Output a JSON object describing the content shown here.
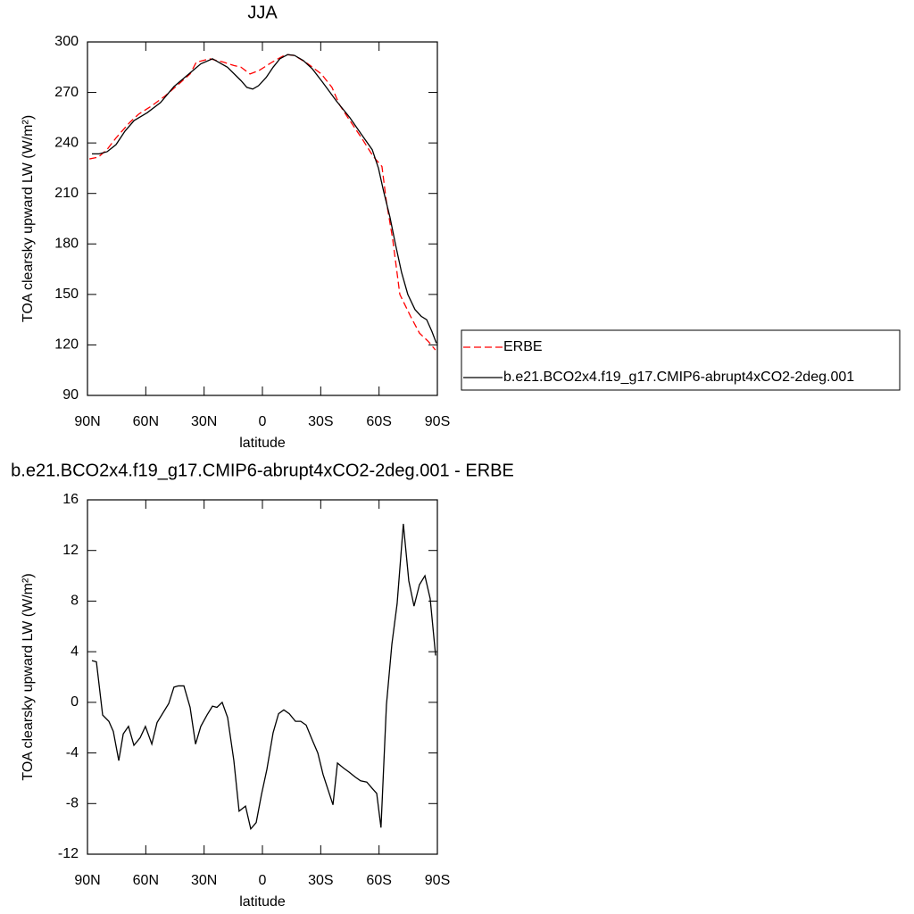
{
  "chart_data": [
    {
      "type": "line",
      "title": "JJA",
      "xlabel": "latitude",
      "ylabel": "TOA clearsky upward LW (W/m²)",
      "xlim": [
        90,
        -90
      ],
      "xticks": [
        {
          "value": 90,
          "label": "90N"
        },
        {
          "value": 60,
          "label": "60N"
        },
        {
          "value": 30,
          "label": "30N"
        },
        0,
        {
          "value": -30,
          "label": "30S"
        },
        {
          "value": -60,
          "label": "60S"
        },
        {
          "value": -90,
          "label": "90S"
        }
      ],
      "ylim": [
        90,
        300
      ],
      "yticks": [
        90,
        120,
        150,
        180,
        210,
        240,
        270,
        300
      ],
      "legend": "right",
      "series": [
        {
          "name": "ERBE",
          "color": "#ff0000",
          "style": "dashed",
          "x": [
            89,
            84.5,
            80,
            75.3,
            68.4,
            63.8,
            57,
            50,
            43,
            37.2,
            34,
            27,
            20,
            14.7,
            11,
            6.4,
            1.8,
            -5,
            -12,
            -16.4,
            -23.4,
            -30.3,
            -35.8,
            -39.5,
            -44,
            -51,
            -57,
            -61.5,
            -63.8,
            -67,
            -70.7,
            -76.2,
            -80.8,
            -85.4,
            -89
          ],
          "values": [
            230.5,
            231.5,
            236,
            243,
            252,
            257,
            262,
            268,
            275,
            281,
            288,
            290,
            288,
            286,
            285,
            281,
            283,
            288,
            292.5,
            292,
            287,
            281,
            273,
            263,
            255,
            243,
            232,
            226,
            205,
            183,
            150,
            137,
            127,
            122,
            117
          ]
        },
        {
          "name": "b.e21.BCO2x4.f19_g17.CMIP6-abrupt4xCO2-2deg.001",
          "color": "#000000",
          "style": "solid",
          "x": [
            87.7,
            84,
            79.9,
            75.3,
            70.7,
            66,
            59.2,
            52.4,
            45.5,
            40.9,
            36.3,
            31.7,
            25.7,
            18,
            11,
            8,
            5,
            2,
            -2,
            -5.5,
            -9,
            -13,
            -16.5,
            -21,
            -25.7,
            -31,
            -38,
            -45,
            -51,
            -56.5,
            -59.7,
            -62.4,
            -65.6,
            -68.4,
            -71.6,
            -74.8,
            -78.5,
            -81.7,
            -84.5,
            -87.2,
            -89.5
          ],
          "values": [
            233.5,
            233.5,
            234.8,
            239,
            247,
            253.3,
            258,
            264,
            273.5,
            278,
            282.5,
            287,
            290,
            285,
            277,
            273,
            272,
            274,
            279,
            285,
            290,
            292.5,
            292,
            289,
            284,
            276,
            265,
            255,
            245,
            236,
            225,
            211,
            196,
            180,
            163,
            150,
            141,
            137,
            135,
            128,
            121
          ]
        }
      ]
    },
    {
      "type": "line",
      "title": "b.e21.BCO2x4.f19_g17.CMIP6-abrupt4xCO2-2deg.001 - ERBE",
      "xlabel": "latitude",
      "ylabel": "TOA clearsky upward LW (W/m²)",
      "xlim": [
        90,
        -90
      ],
      "xticks": [
        {
          "value": 90,
          "label": "90N"
        },
        {
          "value": 60,
          "label": "60N"
        },
        {
          "value": 30,
          "label": "30N"
        },
        0,
        {
          "value": -30,
          "label": "30S"
        },
        {
          "value": -60,
          "label": "60S"
        },
        {
          "value": -90,
          "label": "90S"
        }
      ],
      "ylim": [
        -12,
        16
      ],
      "yticks": [
        -12,
        -8,
        -4,
        0,
        4,
        8,
        12,
        16
      ],
      "series": [
        {
          "color": "#000000",
          "style": "solid",
          "x": [
            87.7,
            85.4,
            82.2,
            79,
            76.7,
            73.9,
            71.6,
            68.9,
            66.1,
            62.9,
            60.2,
            56.9,
            54.2,
            48.2,
            45.5,
            43.2,
            40.4,
            37.2,
            34.4,
            31.7,
            28.5,
            25.7,
            23.4,
            20.7,
            17.9,
            14.7,
            12,
            8.7,
            6,
            3.2,
            0.5,
            -2.3,
            -5.5,
            -8.3,
            -11,
            -13.8,
            -17,
            -19.7,
            -22.5,
            -25.7,
            -28.5,
            -31.2,
            -36.3,
            -38.6,
            -41.8,
            -44.5,
            -47.7,
            -50.5,
            -53.7,
            -56.5,
            -58.8,
            -61,
            -63.8,
            -66.6,
            -69.3,
            -72.5,
            -75.3,
            -78,
            -80.8,
            -83.6,
            -86.3,
            -89.1
          ],
          "values": [
            3.3,
            3.2,
            -1,
            -1.5,
            -2.3,
            -4.6,
            -2.5,
            -1.9,
            -3.4,
            -2.8,
            -1.9,
            -3.3,
            -1.6,
            -0.1,
            1.2,
            1.3,
            1.3,
            -0.4,
            -3.3,
            -1.9,
            -1,
            -0.3,
            -0.4,
            0,
            -1.2,
            -4.6,
            -8.6,
            -8.2,
            -10,
            -9.5,
            -7.3,
            -5.3,
            -2.4,
            -0.9,
            -0.6,
            -0.9,
            -1.5,
            -1.5,
            -1.8,
            -3,
            -4,
            -5.7,
            -8.1,
            -4.8,
            -5.2,
            -5.5,
            -5.9,
            -6.2,
            -6.3,
            -6.8,
            -7.2,
            -9.9,
            -0.2,
            4.6,
            7.8,
            14.1,
            9.6,
            7.6,
            9.3,
            10,
            8.2,
            3.7
          ]
        }
      ]
    }
  ]
}
